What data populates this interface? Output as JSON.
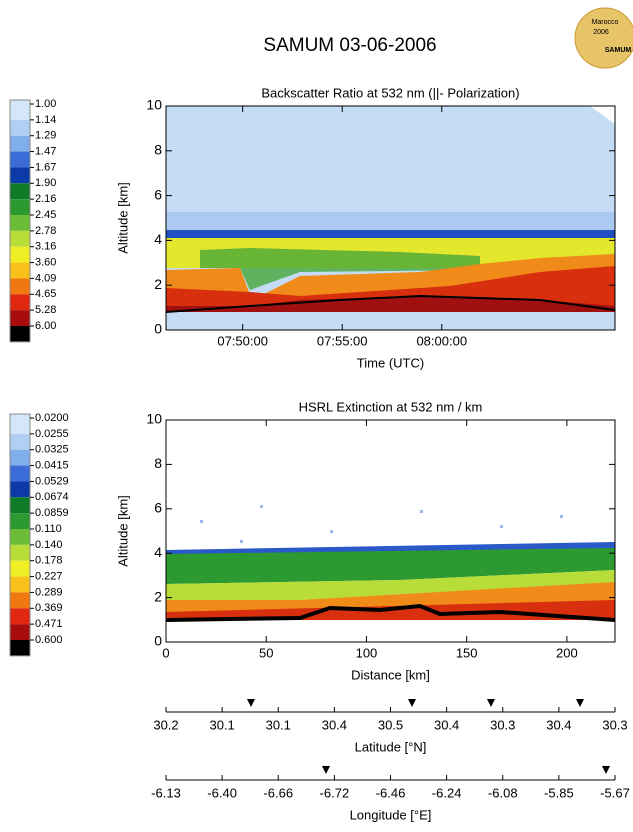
{
  "title": "SAMUM  03-06-2006",
  "logo": [
    "Marocco",
    "2006",
    "SAMUM"
  ],
  "chart_data": [
    {
      "type": "heatmap",
      "title": "Backscatter Ratio at 532 nm (||- Polarization)",
      "x_label": "Time (UTC)",
      "y_label": "Altitude [km]",
      "xlim": [
        466.15,
        488.7
      ],
      "xticks": [
        {
          "value": 470,
          "label": "07:50:00"
        },
        {
          "value": 475,
          "label": "07:55:00"
        },
        {
          "value": 480,
          "label": "08:00:00"
        }
      ],
      "ylim": [
        0,
        10
      ],
      "yticks": [
        0,
        2,
        4,
        6,
        8,
        10
      ],
      "colorbar": {
        "labels": [
          "1.00",
          "1.14",
          "1.29",
          "1.47",
          "1.67",
          "1.90",
          "2.16",
          "2.45",
          "2.78",
          "3.16",
          "3.60",
          "4.09",
          "4.65",
          "5.28",
          "6.00"
        ],
        "colors": [
          "#d6e6fa",
          "#b0cff3",
          "#80aeea",
          "#3c6cd8",
          "#0c3aa8",
          "#0f7a28",
          "#2c9a30",
          "#6cbc38",
          "#b8dc38",
          "#f0ee24",
          "#f8c018",
          "#f07810",
          "#e02810",
          "#a80c0c",
          "#000000"
        ]
      }
    },
    {
      "type": "heatmap",
      "title": "HSRL Extinction at 532 nm / km",
      "x_label": "Distance [km]",
      "y_label": "Altitude [km]",
      "xlim": [
        0,
        224
      ],
      "xticks": [
        0,
        50,
        100,
        150,
        200
      ],
      "ylim": [
        0,
        10
      ],
      "yticks": [
        0,
        2,
        4,
        6,
        8,
        10
      ],
      "colorbar": {
        "labels": [
          "0.0200",
          "0.0255",
          "0.0325",
          "0.0415",
          "0.0529",
          "0.0674",
          "0.0859",
          "0.110",
          "0.140",
          "0.178",
          "0.227",
          "0.289",
          "0.369",
          "0.471",
          "0.600"
        ],
        "colors": [
          "#d6e6fa",
          "#b0cff3",
          "#80aeea",
          "#3c6cd8",
          "#0c3aa8",
          "#0f7a28",
          "#2c9a30",
          "#6cbc38",
          "#b8dc38",
          "#f0ee24",
          "#f8c018",
          "#f07810",
          "#e02810",
          "#a80c0c",
          "#000000"
        ]
      }
    },
    {
      "type": "axis",
      "x_label": "Latitude [°N]",
      "categories": [
        "30.2",
        "30.1",
        "30.1",
        "30.4",
        "30.5",
        "30.4",
        "30.3",
        "30.4",
        "30.3"
      ]
    },
    {
      "type": "axis",
      "x_label": "Longitude [°E]",
      "categories": [
        "-6.13",
        "-6.40",
        "-6.66",
        "-6.72",
        "-6.46",
        "-6.24",
        "-6.08",
        "-5.85",
        "-5.67"
      ]
    }
  ]
}
